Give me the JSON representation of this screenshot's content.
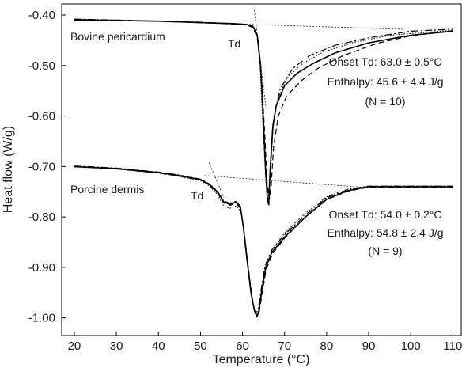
{
  "chart_data": {
    "type": "line",
    "xlabel": "Temperature (°C)",
    "ylabel": "Heat flow (W/g)",
    "xlim": [
      17,
      112
    ],
    "ylim": [
      -1.035,
      -0.378
    ],
    "xticks": [
      20,
      30,
      40,
      50,
      60,
      70,
      80,
      90,
      100,
      110
    ],
    "yticks": [
      -0.4,
      -0.5,
      -0.6,
      -0.7,
      -0.8,
      -0.9,
      -1.0
    ],
    "ytick_labels": [
      "-0.40",
      "-0.50",
      "-0.60",
      "-0.70",
      "-0.80",
      "-0.90",
      "-1.00"
    ],
    "grid": false,
    "panels": [
      {
        "name": "Bovine pericardium",
        "td_label": "Td",
        "stats": [
          "Onset Td: 63.0 ± 0.5°C",
          "Enthalpy: 45.6 ± 4.4 J/g",
          "(N = 10)"
        ],
        "baseline": {
          "x": [
            21,
            98
          ],
          "y": [
            -0.408,
            -0.428
          ]
        },
        "onset_tangent": {
          "x": [
            62.8,
            65.6
          ],
          "y": [
            -0.39,
            -0.585
          ]
        },
        "series": [
          {
            "style": "solid",
            "x": [
              20,
              30,
              40,
              50,
              58,
              61,
              62.5,
              63.5,
              64.3,
              65.0,
              65.5,
              65.9,
              66.2,
              66.6,
              67.2,
              68.0,
              70.0,
              73.0,
              77.0,
              82.0,
              90.0,
              100.0,
              110.0
            ],
            "y": [
              -0.41,
              -0.411,
              -0.412,
              -0.415,
              -0.417,
              -0.419,
              -0.423,
              -0.44,
              -0.5,
              -0.62,
              -0.71,
              -0.76,
              -0.775,
              -0.7,
              -0.62,
              -0.58,
              -0.54,
              -0.515,
              -0.495,
              -0.475,
              -0.455,
              -0.44,
              -0.432
            ]
          },
          {
            "style": "dashed",
            "x": [
              20,
              30,
              40,
              50,
              58,
              61,
              62.5,
              63.5,
              64.5,
              65.3,
              65.9,
              66.4,
              66.8,
              67.4,
              68.5,
              70.5,
              74.0,
              78.0,
              84.0,
              92.0,
              100.0,
              110.0
            ],
            "y": [
              -0.409,
              -0.41,
              -0.412,
              -0.415,
              -0.418,
              -0.42,
              -0.425,
              -0.445,
              -0.52,
              -0.64,
              -0.74,
              -0.765,
              -0.74,
              -0.66,
              -0.6,
              -0.56,
              -0.53,
              -0.505,
              -0.48,
              -0.456,
              -0.441,
              -0.431
            ]
          },
          {
            "style": "dash-dot",
            "x": [
              20,
              30,
              40,
              50,
              58,
              61,
              62.5,
              63.5,
              64.3,
              65.0,
              65.6,
              66.0,
              66.4,
              66.9,
              67.5,
              69.0,
              72.0,
              76.0,
              82.0,
              90.0,
              100.0,
              110.0
            ],
            "y": [
              -0.408,
              -0.41,
              -0.412,
              -0.414,
              -0.417,
              -0.418,
              -0.422,
              -0.438,
              -0.495,
              -0.61,
              -0.715,
              -0.755,
              -0.74,
              -0.66,
              -0.6,
              -0.545,
              -0.505,
              -0.48,
              -0.46,
              -0.445,
              -0.432,
              -0.428
            ]
          },
          {
            "style": "dotted",
            "x": [
              20,
              30,
              40,
              50,
              58,
              61,
              62.5,
              63.5,
              64.2,
              64.9,
              65.5,
              65.9,
              66.3,
              66.7,
              67.3,
              68.3,
              70.5,
              74.0,
              79.0,
              86.0,
              95.0,
              110.0
            ],
            "y": [
              -0.41,
              -0.411,
              -0.412,
              -0.415,
              -0.417,
              -0.419,
              -0.424,
              -0.442,
              -0.505,
              -0.63,
              -0.72,
              -0.765,
              -0.778,
              -0.705,
              -0.62,
              -0.57,
              -0.525,
              -0.498,
              -0.474,
              -0.455,
              -0.44,
              -0.43
            ]
          }
        ]
      },
      {
        "name": "Porcine dermis",
        "td_label": "Td",
        "stats": [
          "Onset Td: 54.0 ± 0.2°C",
          "Enthalpy: 54.8 ± 2.4 J/g",
          "(N = 9)"
        ],
        "baseline": {
          "x": [
            51,
            90
          ],
          "y": [
            -0.718,
            -0.742
          ]
        },
        "onset_tangent": {
          "x": [
            52.0,
            55.6
          ],
          "y": [
            -0.692,
            -0.762
          ]
        },
        "series": [
          {
            "style": "solid",
            "x": [
              20,
              30,
              40,
              45,
              50,
              52,
              54,
              55.5,
              57.0,
              58.5,
              59.5,
              60.2,
              61.0,
              62.0,
              62.8,
              63.3,
              63.8,
              64.5,
              65.5,
              67.0,
              70.0,
              75.0,
              80.0,
              85.0,
              90.0,
              100.0,
              110.0
            ],
            "y": [
              -0.7,
              -0.704,
              -0.712,
              -0.718,
              -0.726,
              -0.735,
              -0.75,
              -0.77,
              -0.775,
              -0.77,
              -0.78,
              -0.82,
              -0.88,
              -0.95,
              -0.985,
              -0.995,
              -0.99,
              -0.95,
              -0.9,
              -0.87,
              -0.84,
              -0.8,
              -0.765,
              -0.748,
              -0.74,
              -0.74,
              -0.74
            ]
          },
          {
            "style": "dashed",
            "x": [
              20,
              30,
              40,
              45,
              50,
              52,
              54,
              55.5,
              57.0,
              58.5,
              59.6,
              60.4,
              61.2,
              62.2,
              62.9,
              63.4,
              63.9,
              64.6,
              65.6,
              67.2,
              70.0,
              75.0,
              80.0,
              85.0,
              90.0,
              100.0,
              110.0
            ],
            "y": [
              -0.7,
              -0.705,
              -0.713,
              -0.719,
              -0.727,
              -0.736,
              -0.752,
              -0.772,
              -0.777,
              -0.772,
              -0.785,
              -0.83,
              -0.89,
              -0.955,
              -0.988,
              -0.998,
              -0.992,
              -0.955,
              -0.905,
              -0.872,
              -0.842,
              -0.8,
              -0.766,
              -0.749,
              -0.741,
              -0.741,
              -0.741
            ]
          },
          {
            "style": "dash-dot",
            "x": [
              20,
              30,
              40,
              45,
              50,
              52,
              54,
              55.5,
              57.0,
              58.5,
              59.5,
              60.2,
              61.0,
              62.0,
              62.7,
              63.2,
              63.7,
              64.4,
              65.4,
              67.0,
              70.0,
              75.0,
              80.0,
              85.0,
              90.0,
              100.0,
              110.0
            ],
            "y": [
              -0.699,
              -0.703,
              -0.711,
              -0.717,
              -0.725,
              -0.734,
              -0.749,
              -0.768,
              -0.773,
              -0.769,
              -0.779,
              -0.818,
              -0.878,
              -0.948,
              -0.982,
              -0.99,
              -0.985,
              -0.945,
              -0.895,
              -0.865,
              -0.835,
              -0.796,
              -0.762,
              -0.746,
              -0.739,
              -0.739,
              -0.739
            ]
          },
          {
            "style": "dotted",
            "x": [
              20,
              30,
              40,
              45,
              50,
              52,
              54,
              55.5,
              57.0,
              58.5,
              59.7,
              60.5,
              61.3,
              62.2,
              62.9,
              63.4,
              63.9,
              64.6,
              65.6,
              67.0,
              70.0,
              75.0,
              80.0,
              85.0,
              90.0,
              100.0,
              110.0
            ],
            "y": [
              -0.701,
              -0.705,
              -0.713,
              -0.72,
              -0.728,
              -0.738,
              -0.755,
              -0.778,
              -0.783,
              -0.778,
              -0.79,
              -0.835,
              -0.895,
              -0.96,
              -0.99,
              -0.997,
              -0.99,
              -0.95,
              -0.9,
              -0.865,
              -0.832,
              -0.792,
              -0.76,
              -0.745,
              -0.739,
              -0.739,
              -0.739
            ]
          }
        ]
      }
    ]
  }
}
